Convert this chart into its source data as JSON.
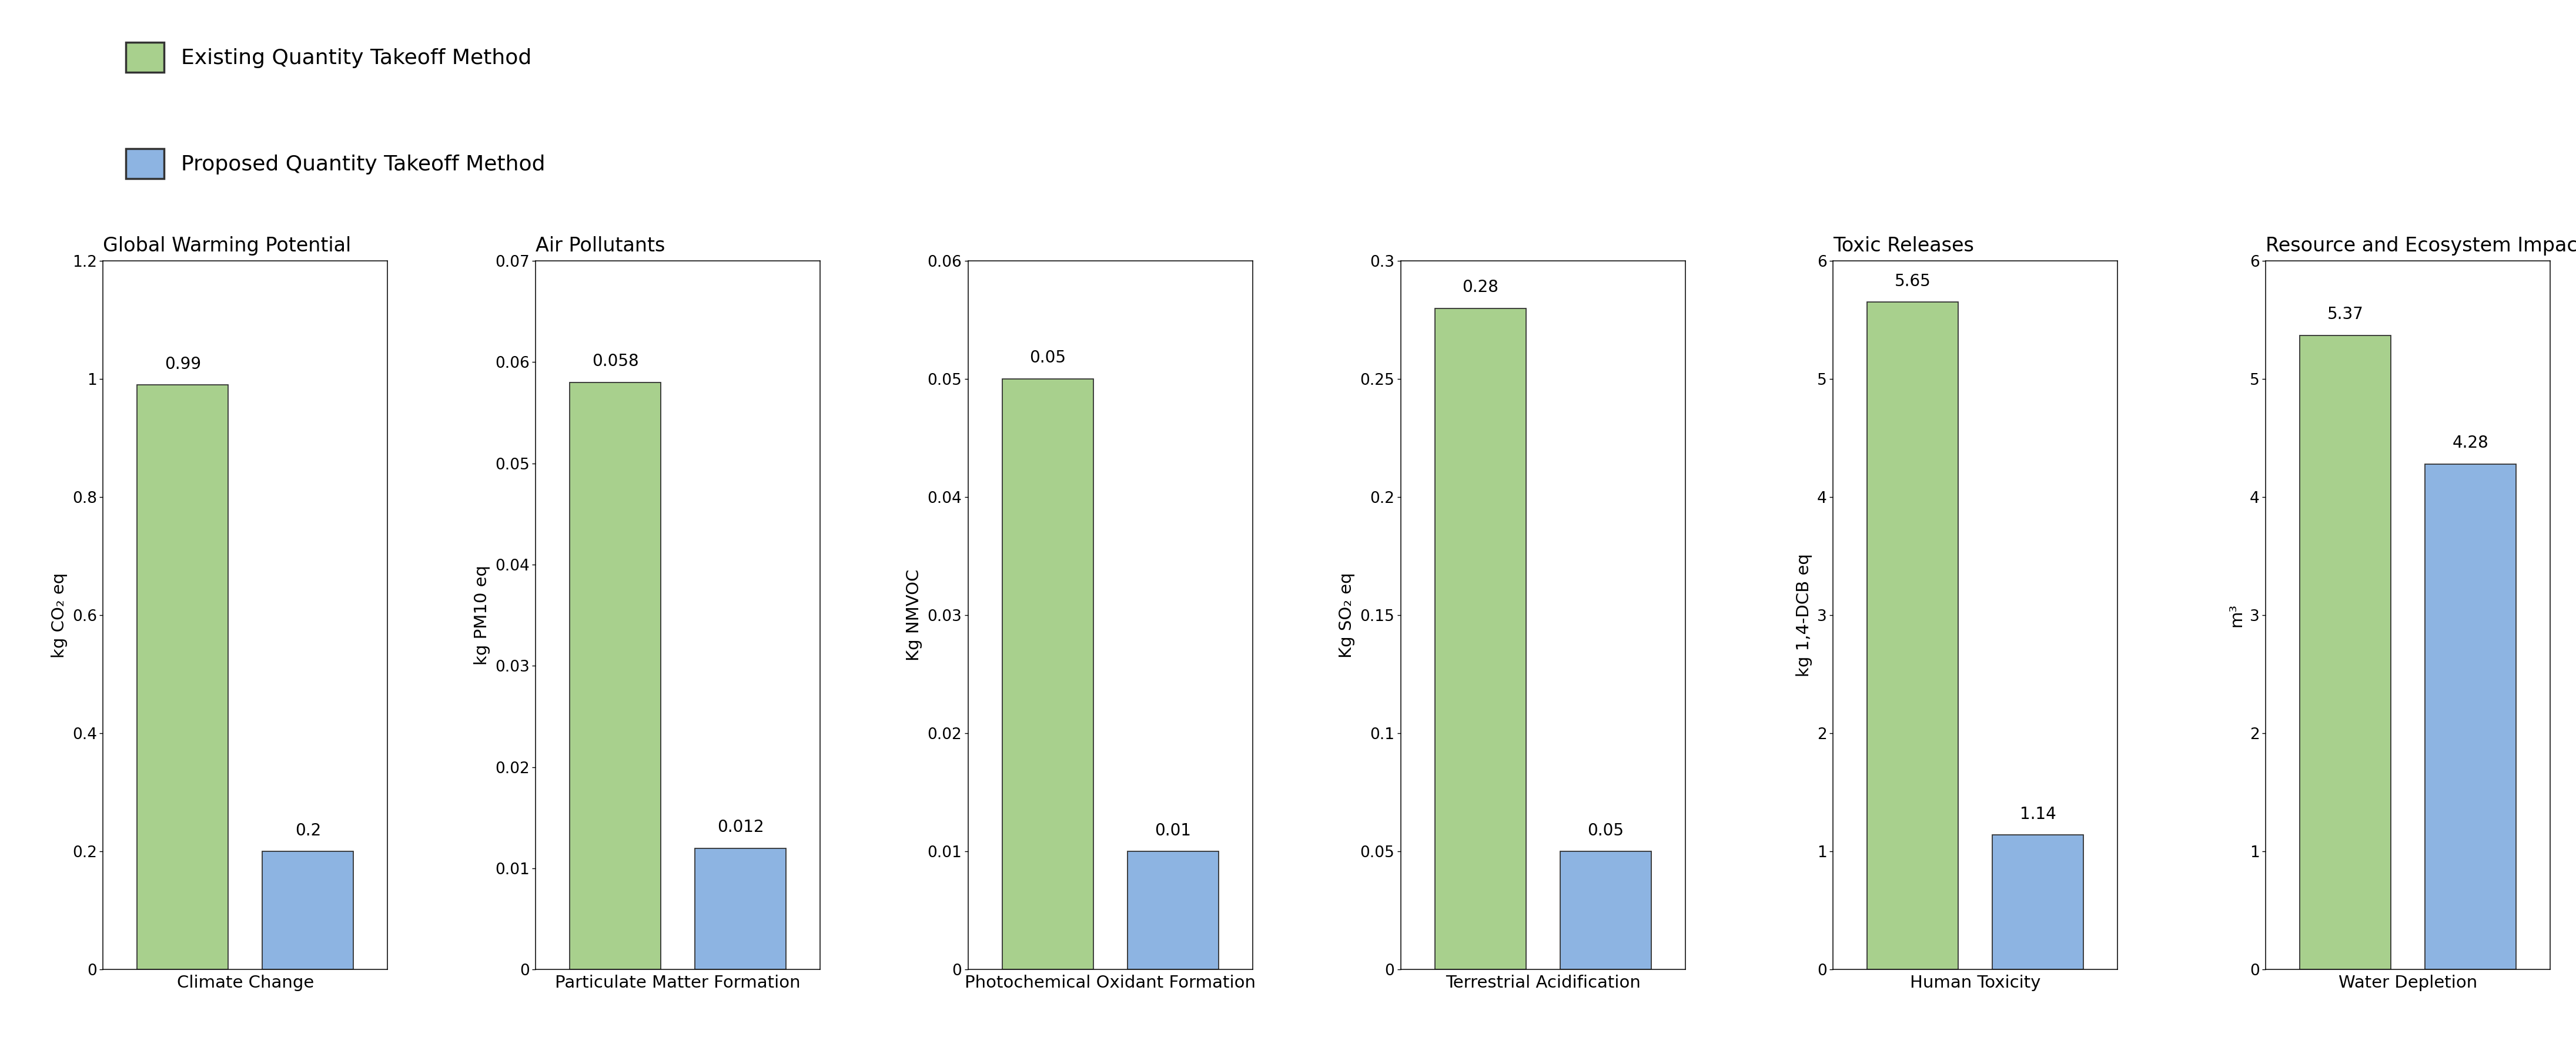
{
  "legend": {
    "existing_label": "Existing Quantity Takeoff Method",
    "proposed_label": "Proposed Quantity Takeoff Method",
    "existing_color": "#a8d08d",
    "proposed_color": "#8db4e2",
    "existing_edge": "#333333",
    "proposed_edge": "#333333"
  },
  "group_labels": [
    {
      "label": "Global Warming Potential",
      "subplot_indices": [
        0
      ]
    },
    {
      "label": "Air Pollutants",
      "subplot_indices": [
        1,
        2,
        3
      ]
    },
    {
      "label": "Toxic Releases",
      "subplot_indices": [
        4
      ]
    },
    {
      "label": "Resource and Ecosystem Impact",
      "subplot_indices": [
        5
      ]
    }
  ],
  "subplots": [
    {
      "title": "Climate Change",
      "ylabel": "kg CO₂ eq",
      "existing_val": 0.99,
      "proposed_val": 0.2,
      "ylim": [
        0,
        1.2
      ],
      "yticks": [
        0,
        0.2,
        0.4,
        0.6,
        0.8,
        1.0,
        1.2
      ],
      "ytick_labels": [
        "0",
        "0.2",
        "0.4",
        "0.6",
        "0.8",
        "1",
        "1.2"
      ]
    },
    {
      "title": "Particulate Matter Formation",
      "ylabel": "kg PM10 eq",
      "existing_val": 0.058,
      "proposed_val": 0.012,
      "ylim": [
        0,
        0.07
      ],
      "yticks": [
        0,
        0.01,
        0.02,
        0.03,
        0.04,
        0.05,
        0.06,
        0.07
      ],
      "ytick_labels": [
        "0",
        "0.01",
        "0.02",
        "0.03",
        "0.04",
        "0.05",
        "0.06",
        "0.07"
      ]
    },
    {
      "title": "Photochemical Oxidant Formation",
      "ylabel": "Kg NMVOC",
      "existing_val": 0.05,
      "proposed_val": 0.01,
      "ylim": [
        0,
        0.06
      ],
      "yticks": [
        0,
        0.01,
        0.02,
        0.03,
        0.04,
        0.05,
        0.06
      ],
      "ytick_labels": [
        "0",
        "0.01",
        "0.02",
        "0.03",
        "0.04",
        "0.05",
        "0.06"
      ]
    },
    {
      "title": "Terrestrial Acidification",
      "ylabel": "Kg SO₂ eq",
      "existing_val": 0.28,
      "proposed_val": 0.05,
      "ylim": [
        0,
        0.3
      ],
      "yticks": [
        0,
        0.05,
        0.1,
        0.15,
        0.2,
        0.25,
        0.3
      ],
      "ytick_labels": [
        "0",
        "0.05",
        "0.1",
        "0.15",
        "0.2",
        "0.25",
        "0.3"
      ]
    },
    {
      "title": "Human Toxicity",
      "ylabel": "kg 1,4-DCB eq",
      "existing_val": 5.65,
      "proposed_val": 1.14,
      "ylim": [
        0,
        6
      ],
      "yticks": [
        0,
        1,
        2,
        3,
        4,
        5,
        6
      ],
      "ytick_labels": [
        "0",
        "1",
        "2",
        "3",
        "4",
        "5",
        "6"
      ]
    },
    {
      "title": "Water Depletion",
      "ylabel": "m³",
      "existing_val": 5.37,
      "proposed_val": 4.28,
      "ylim": [
        0,
        6
      ],
      "yticks": [
        0,
        1,
        2,
        3,
        4,
        5,
        6
      ],
      "ytick_labels": [
        "0",
        "1",
        "2",
        "3",
        "4",
        "5",
        "6"
      ]
    }
  ],
  "existing_color": "#a8d08d",
  "proposed_color": "#8db4e2",
  "existing_edge": "#333333",
  "proposed_edge": "#333333",
  "bar_width": 0.32,
  "figure_bg": "#ffffff",
  "axes_bg": "#ffffff"
}
